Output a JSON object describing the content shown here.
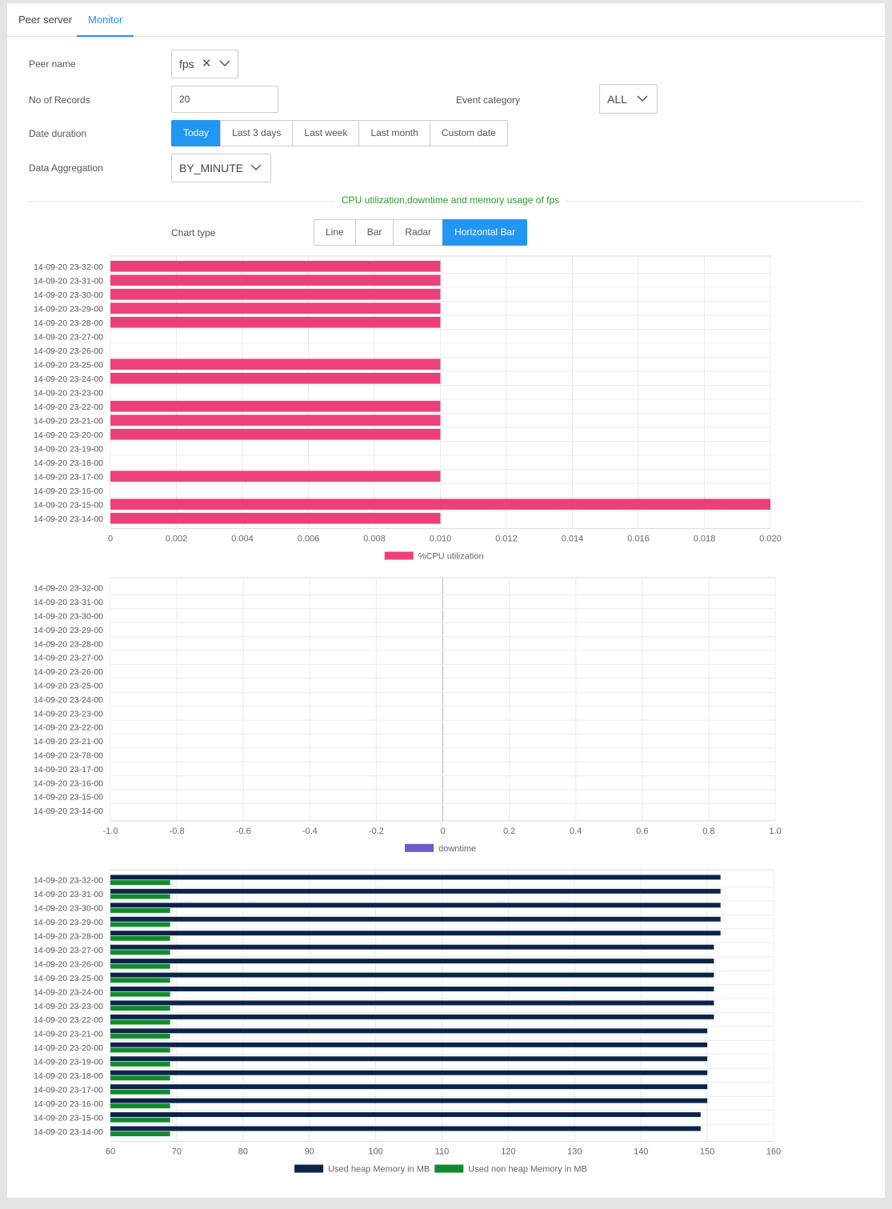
{
  "tabs": [
    "Peer server",
    "Monitor"
  ],
  "active_tab": "Monitor",
  "form": {
    "peer_name_label": "Peer name",
    "peer_name_value": "fps",
    "records_label": "No of Records",
    "records_value": "20",
    "event_category_label": "Event category",
    "event_category_value": "ALL",
    "date_duration_label": "Date duration",
    "date_options": [
      "Today",
      "Last 3 days",
      "Last week",
      "Last month",
      "Custom date"
    ],
    "date_selected": "Today",
    "aggregation_label": "Data Aggregation",
    "aggregation_value": "BY_MINUTE"
  },
  "section_title": "CPU utilization,downtime and memory usage of fps",
  "chart_type": {
    "label": "Chart type",
    "options": [
      "Line",
      "Bar",
      "Radar",
      "Horizontal Bar"
    ],
    "selected": "Horizontal Bar"
  },
  "icons": {
    "clear": "close-icon",
    "dropdown": "chevron-down-icon"
  },
  "colors": {
    "accent": "#2196f3",
    "cpu": "#ec407a",
    "downtime": "#6a5acd",
    "heap": "#0b2447",
    "nonheap": "#118a2e",
    "section": "#2a9d2a"
  },
  "chart_data": [
    {
      "type": "bar",
      "orientation": "horizontal",
      "categories": [
        "14-09-20 23-32-00",
        "14-09-20 23-31-00",
        "14-09-20 23-30-00",
        "14-09-20 23-29-00",
        "14-09-20 23-28-00",
        "14-09-20 23-27-00",
        "14-09-20 23-26-00",
        "14-09-20 23-25-00",
        "14-09-20 23-24-00",
        "14-09-20 23-23-00",
        "14-09-20 23-22-00",
        "14-09-20 23-21-00",
        "14-09-20 23-20-00",
        "14-09-20 23-19-00",
        "14-09-20 23-18-00",
        "14-09-20 23-17-00",
        "14-09-20 23-16-00",
        "14-09-20 23-15-00",
        "14-09-20 23-14-00"
      ],
      "series": [
        {
          "name": "%CPU utilization",
          "values": [
            0.01,
            0.01,
            0.01,
            0.01,
            0.01,
            0,
            0,
            0.01,
            0.01,
            0,
            0.01,
            0.01,
            0.01,
            0,
            0,
            0.01,
            0,
            0.02,
            0.01
          ]
        }
      ],
      "xlim": [
        0,
        0.02
      ],
      "xticks": [
        "0",
        "0.002",
        "0.004",
        "0.006",
        "0.008",
        "0.010",
        "0.012",
        "0.014",
        "0.016",
        "0.018",
        "0.020"
      ],
      "legend": "bottom",
      "grid": true
    },
    {
      "type": "bar",
      "orientation": "horizontal",
      "categories": [
        "14-09-20 23-32-00",
        "14-09-20 23-31-00",
        "14-09-20 23-30-00",
        "14-09-20 23-29-00",
        "14-09-20 23-28-00",
        "14-09-20 23-27-00",
        "14-09-20 23-26-00",
        "14-09-20 23-25-00",
        "14-09-20 23-24-00",
        "14-09-20 23-23-00",
        "14-09-20 23-22-00",
        "14-09-20 23-21-00",
        "14-09-20 23-78-00",
        "14-09-20 23-17-00",
        "14-09-20 23-16-00",
        "14-09-20 23-15-00",
        "14-09-20 23-14-00"
      ],
      "series": [
        {
          "name": "downtime",
          "values": [
            0,
            0,
            0,
            0,
            0,
            0,
            0,
            0,
            0,
            0,
            0,
            0,
            0,
            0,
            0,
            0,
            0
          ]
        }
      ],
      "xlim": [
        -1,
        1
      ],
      "xticks": [
        "-1.0",
        "-0.8",
        "-0.6",
        "-0.4",
        "-0.2",
        "0",
        "0.2",
        "0.4",
        "0.6",
        "0.8",
        "1.0"
      ],
      "legend": "bottom",
      "grid": true
    },
    {
      "type": "bar",
      "orientation": "horizontal",
      "categories": [
        "14-09-20 23-32-00",
        "14-09-20 23-31-00",
        "14-09-20 23-30-00",
        "14-09-20 23-29-00",
        "14-09-20 23-28-00",
        "14-09-20 23-27-00",
        "14-09-20 23-26-00",
        "14-09-20 23-25-00",
        "14-09-20 23-24-00",
        "14-09-20 23-23-00",
        "14-09-20 23-22-00",
        "14-09-20 23-21-00",
        "14-09-20 23-20-00",
        "14-09-20 23-19-00",
        "14-09-20 23-18-00",
        "14-09-20 23-17-00",
        "14-09-20 23-16-00",
        "14-09-20 23-15-00",
        "14-09-20 23-14-00"
      ],
      "series": [
        {
          "name": "Used heap Memory in MB",
          "values": [
            152,
            152,
            152,
            152,
            152,
            151,
            151,
            151,
            151,
            151,
            151,
            150,
            150,
            150,
            150,
            150,
            150,
            149,
            149
          ]
        },
        {
          "name": "Used non heap Memory in MB",
          "values": [
            69,
            69,
            69,
            69,
            69,
            69,
            69,
            69,
            69,
            69,
            69,
            69,
            69,
            69,
            69,
            69,
            69,
            69,
            69
          ]
        }
      ],
      "xlim": [
        60,
        160
      ],
      "xticks": [
        "60",
        "70",
        "80",
        "90",
        "100",
        "110",
        "120",
        "130",
        "140",
        "150",
        "160"
      ],
      "legend": "bottom",
      "grid": true
    }
  ]
}
